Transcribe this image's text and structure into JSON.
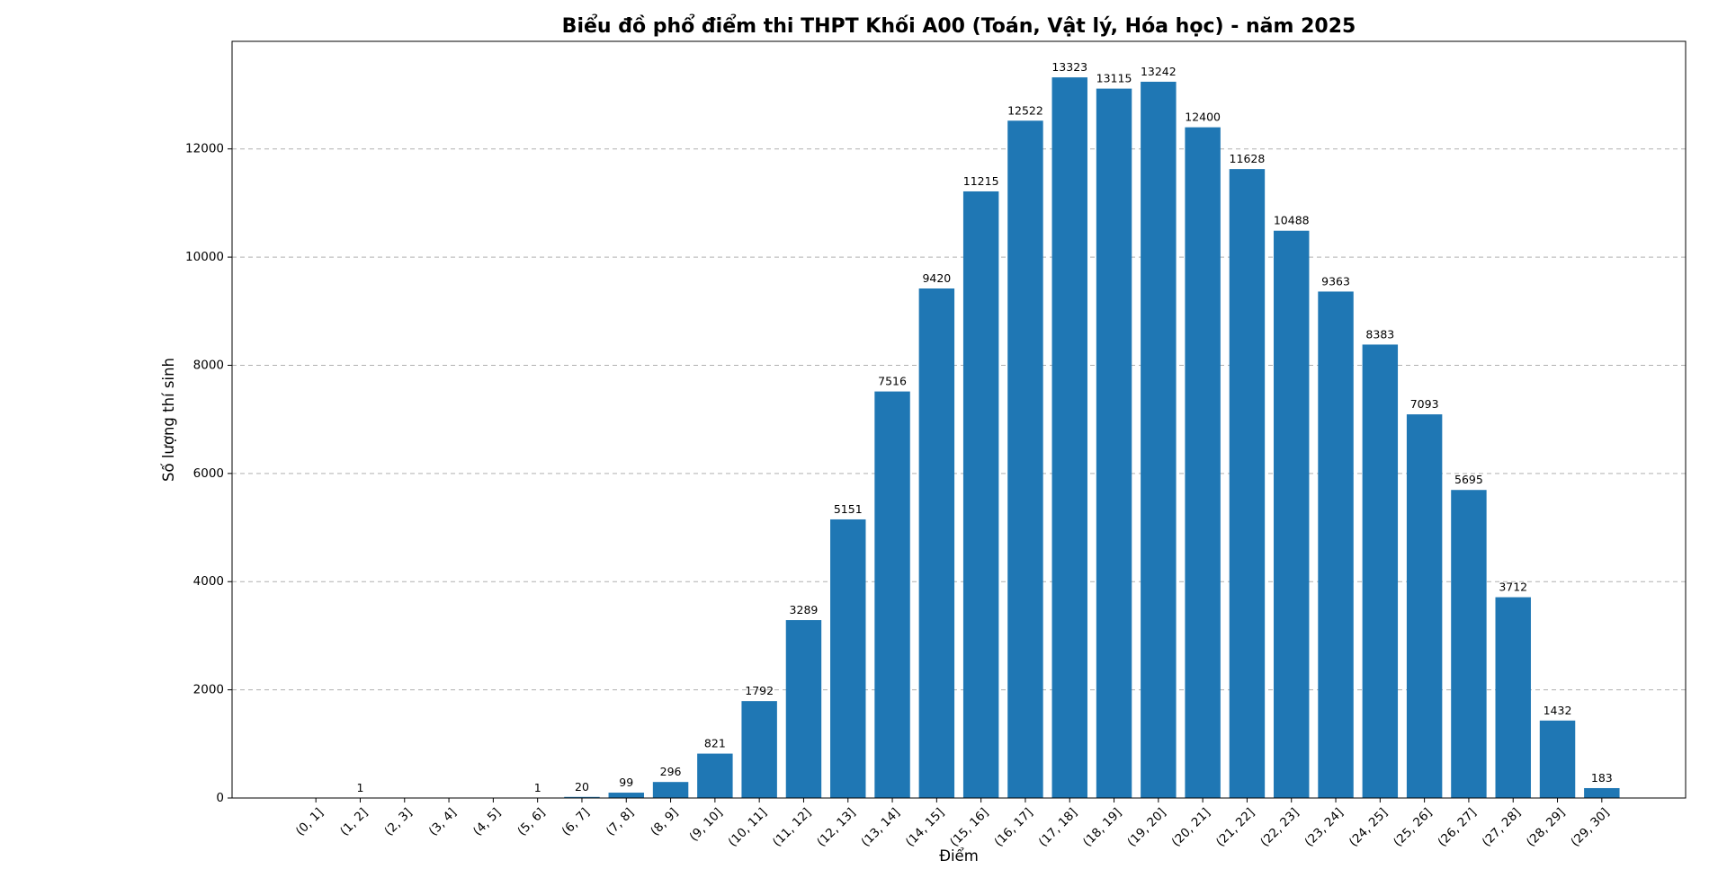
{
  "chart_data": {
    "type": "bar",
    "title": "Biểu đồ phổ điểm thi THPT Khối A00 (Toán, Vật lý, Hóa học) - năm 2025",
    "xlabel": "Điểm",
    "ylabel": "Số lượng thí sinh",
    "categories": [
      "(0, 1]",
      "(1, 2]",
      "(2, 3]",
      "(3, 4]",
      "(4, 5]",
      "(5, 6]",
      "(6, 7]",
      "(7, 8]",
      "(8, 9]",
      "(9, 10]",
      "(10, 11]",
      "(11, 12]",
      "(12, 13]",
      "(13, 14]",
      "(14, 15]",
      "(15, 16]",
      "(16, 17]",
      "(17, 18]",
      "(18, 19]",
      "(19, 20]",
      "(20, 21]",
      "(21, 22]",
      "(22, 23]",
      "(23, 24]",
      "(24, 25]",
      "(25, 26]",
      "(26, 27]",
      "(27, 28]",
      "(28, 29]",
      "(29, 30]"
    ],
    "values": [
      0,
      1,
      0,
      0,
      0,
      1,
      20,
      99,
      296,
      821,
      1792,
      3289,
      5151,
      7516,
      9420,
      11215,
      12522,
      13323,
      13115,
      13242,
      12400,
      11628,
      10488,
      9363,
      8383,
      7093,
      5695,
      3712,
      1432,
      183
    ],
    "color": "#1f77b4",
    "ylim": [
      0,
      13989
    ],
    "yticks": [
      0,
      2000,
      4000,
      6000,
      8000,
      10000,
      12000
    ],
    "grid": true
  }
}
